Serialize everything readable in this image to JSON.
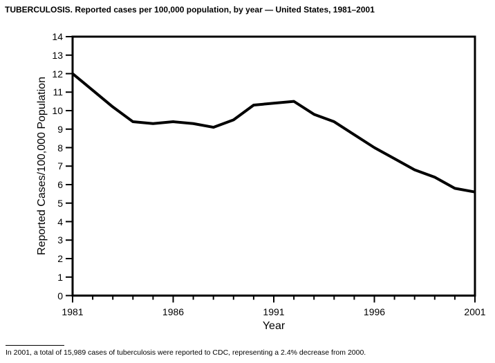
{
  "page": {
    "footnote": "In 2001, a total of 15,989 cases of tuberculosis were reported to CDC, representing a 2.4% decrease from 2000."
  },
  "chart_data": {
    "type": "line",
    "title": "TUBERCULOSIS. Reported cases per 100,000 population, by year — United States, 1981–2001",
    "xlabel": "Year",
    "ylabel": "Reported Cases/100,000 Population",
    "x": [
      1981,
      1982,
      1983,
      1984,
      1985,
      1986,
      1987,
      1988,
      1989,
      1990,
      1991,
      1992,
      1993,
      1994,
      1995,
      1996,
      1997,
      1998,
      1999,
      2000,
      2001
    ],
    "series": [
      {
        "name": "Reported TB cases per 100,000 population",
        "values": [
          12.0,
          11.1,
          10.2,
          9.4,
          9.3,
          9.4,
          9.3,
          9.1,
          9.5,
          10.3,
          10.4,
          10.5,
          9.8,
          9.4,
          8.7,
          8.0,
          7.4,
          6.8,
          6.4,
          5.8,
          5.6
        ]
      }
    ],
    "xlim": [
      1981,
      2001
    ],
    "ylim": [
      0,
      14
    ],
    "y_ticks": [
      0,
      1,
      2,
      3,
      4,
      5,
      6,
      7,
      8,
      9,
      10,
      11,
      12,
      13,
      14
    ],
    "x_tick_labels": [
      1981,
      1986,
      1991,
      1996,
      2001
    ],
    "grid": false,
    "legend": "none",
    "line_color": "#000000",
    "axis_color": "#000000",
    "background_color": "#ffffff"
  }
}
